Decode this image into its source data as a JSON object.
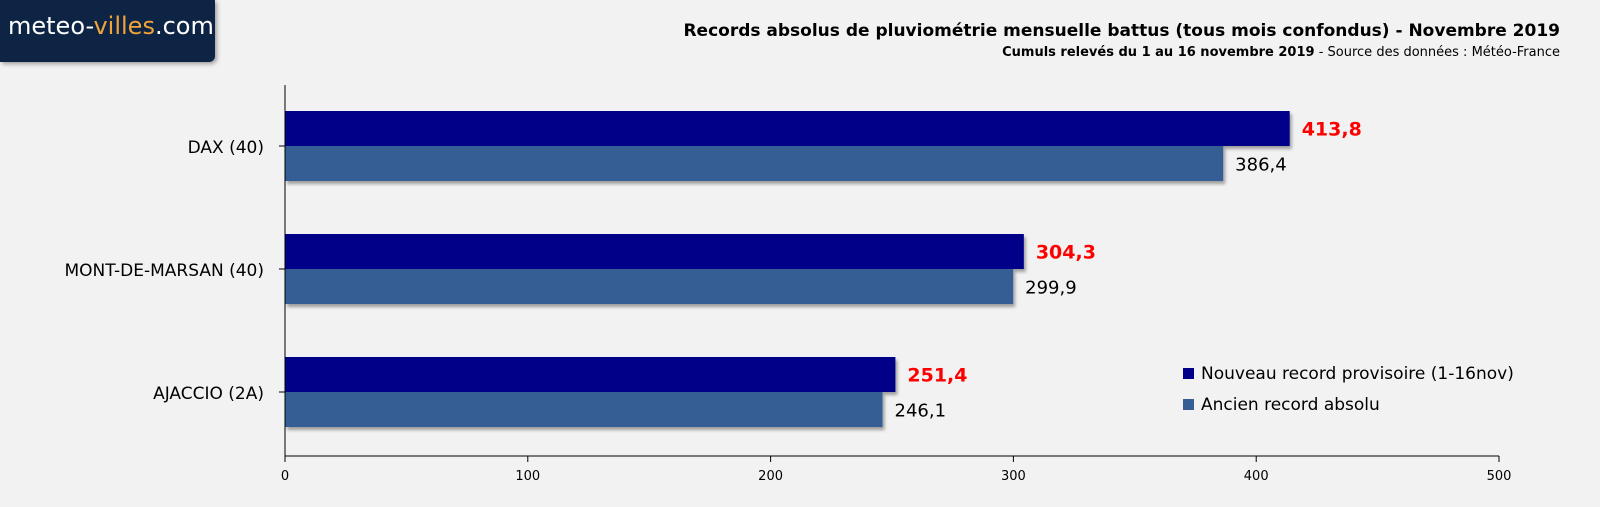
{
  "logo": {
    "prefix": "meteo-",
    "accent": "villes",
    "suffix": ".com"
  },
  "header": {
    "title": "Records absolus de pluviométrie mensuelle battus (tous mois confondus) - Novembre 2019",
    "subtitle_strong": "Cumuls relevés du 1 au 16 novembre 2019",
    "subtitle_rest": " - Source des données : Météo-France"
  },
  "colors": {
    "new_record": "#000089",
    "old_record": "#355f94",
    "highlight_label": "#ff0000",
    "background": "#f2f2f2"
  },
  "chart_data": {
    "type": "bar",
    "orientation": "horizontal",
    "categories": [
      "DAX (40)",
      "MONT-DE-MARSAN (40)",
      "AJACCIO (2A)"
    ],
    "series": [
      {
        "name": "Nouveau record provisoire (1-16nov)",
        "values": [
          413.8,
          304.3,
          251.4
        ],
        "labels": [
          "413,8",
          "304,3",
          "251,4"
        ]
      },
      {
        "name": "Ancien record absolu",
        "values": [
          386.4,
          299.9,
          246.1
        ],
        "labels": [
          "386,4",
          "299,9",
          "246,1"
        ]
      }
    ],
    "xlim": [
      0,
      500
    ],
    "xticks": [
      0,
      100,
      200,
      300,
      400,
      500
    ],
    "legend_position": "bottom-right",
    "grid": false
  }
}
